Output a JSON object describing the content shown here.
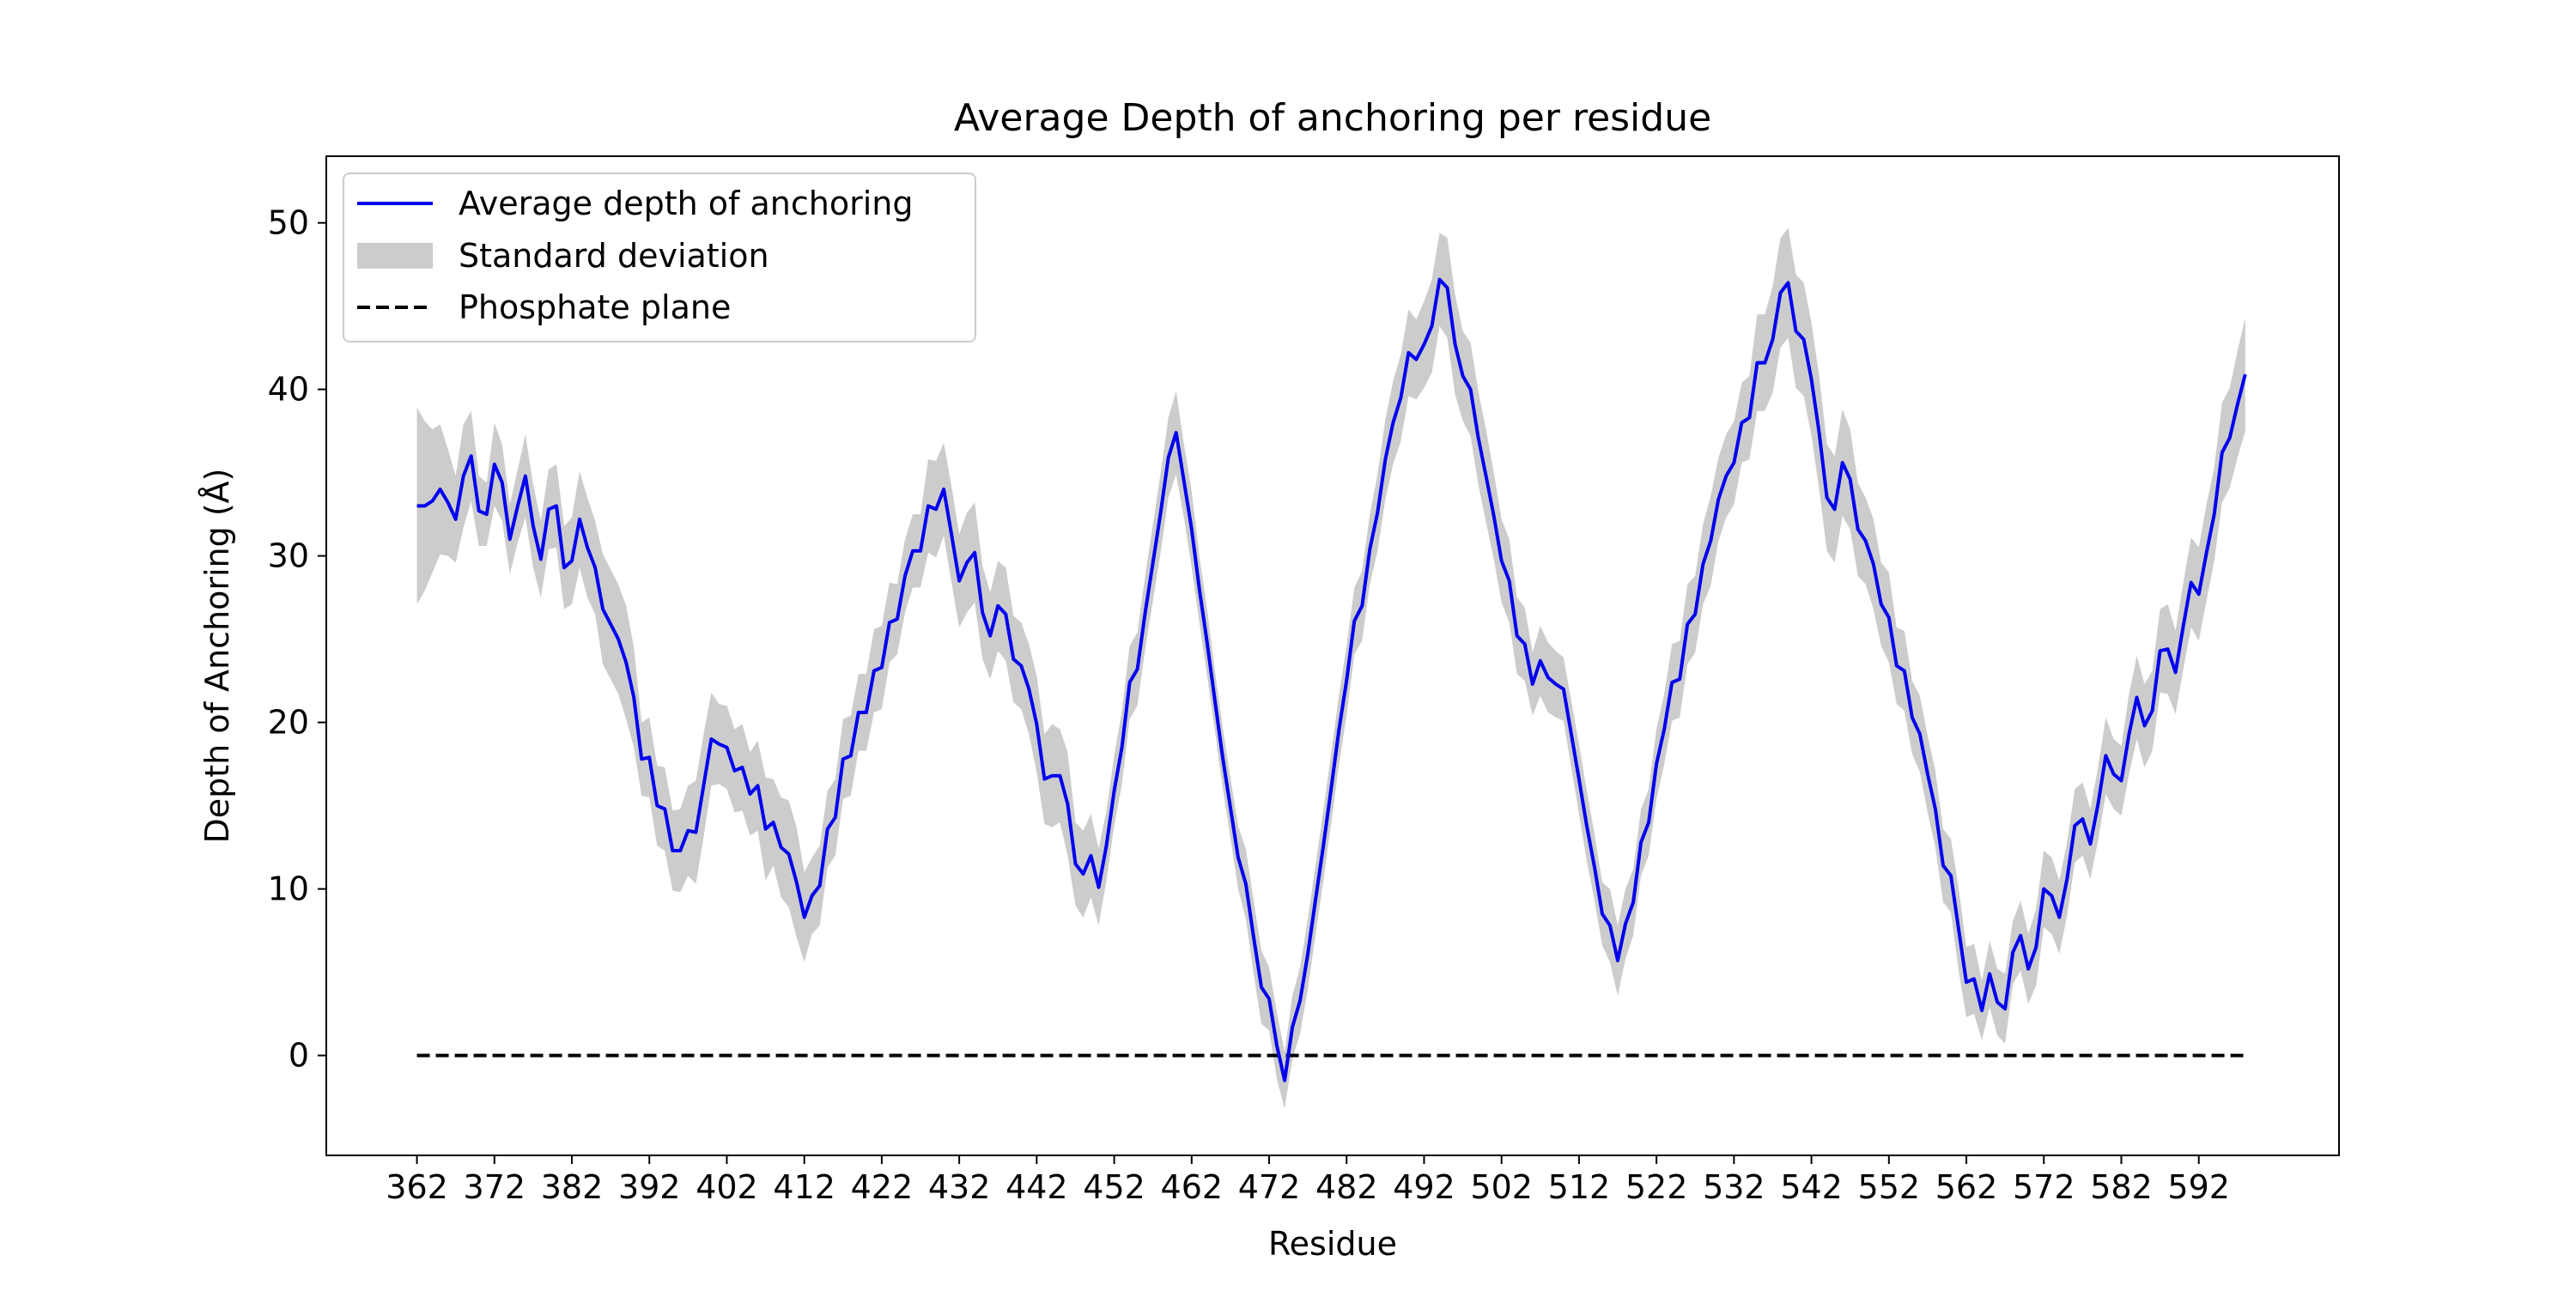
{
  "chart_data": {
    "type": "line",
    "title": "Average Depth of anchoring per residue",
    "xlabel": "Residue",
    "ylabel": "Depth of Anchoring (Å)",
    "xlim": [
      350.3,
      610.1
    ],
    "ylim": [
      -6,
      54
    ],
    "x_ticks": [
      362,
      372,
      382,
      392,
      402,
      412,
      422,
      432,
      442,
      452,
      462,
      472,
      482,
      492,
      502,
      512,
      522,
      532,
      542,
      552,
      562,
      572,
      582,
      592
    ],
    "y_ticks": [
      0,
      10,
      20,
      30,
      40,
      50
    ],
    "grid": false,
    "legend_position": "top-left",
    "legend": [
      {
        "label": "Average depth of anchoring",
        "style": "line",
        "color": "#0000ee"
      },
      {
        "label": "Standard deviation",
        "style": "band",
        "color": "#cccccc"
      },
      {
        "label": "Phosphate plane",
        "style": "dashed",
        "color": "#000000"
      }
    ],
    "x_start": 362,
    "x_step": 1,
    "series": [
      {
        "name": "Average depth of anchoring",
        "values": [
          33.0,
          33.0,
          33.3,
          34.0,
          33.2,
          32.2,
          34.8,
          36.0,
          32.7,
          32.5,
          35.5,
          34.4,
          31.0,
          33.0,
          34.8,
          31.8,
          29.8,
          32.8,
          33.0,
          29.3,
          29.7,
          32.2,
          30.5,
          29.3,
          26.8,
          25.9,
          25.0,
          23.6,
          21.5,
          17.8,
          17.9,
          15.0,
          14.8,
          12.3,
          12.3,
          13.5,
          13.4,
          16.2,
          19.0,
          18.7,
          18.5,
          17.1,
          17.3,
          15.7,
          16.2,
          13.6,
          14.0,
          12.5,
          12.1,
          10.4,
          8.3,
          9.6,
          10.2,
          13.6,
          14.3,
          17.8,
          18.0,
          20.6,
          20.6,
          23.1,
          23.3,
          26.0,
          26.2,
          28.8,
          30.3,
          30.3,
          33.0,
          32.8,
          34.0,
          31.3,
          28.5,
          29.6,
          30.2,
          26.6,
          25.2,
          27.0,
          26.5,
          23.8,
          23.4,
          22.0,
          19.9,
          16.6,
          16.8,
          16.8,
          15.1,
          11.5,
          10.9,
          12.0,
          10.1,
          12.6,
          15.9,
          18.5,
          22.4,
          23.2,
          26.6,
          29.6,
          32.6,
          35.9,
          37.4,
          34.5,
          31.6,
          28.0,
          24.8,
          21.3,
          17.9,
          14.9,
          11.9,
          10.3,
          7.1,
          4.1,
          3.4,
          0.6,
          -1.5,
          1.7,
          3.3,
          6.1,
          9.4,
          12.6,
          16.0,
          19.5,
          22.5,
          26.1,
          27.0,
          30.4,
          32.6,
          35.8,
          38.0,
          39.5,
          42.2,
          41.8,
          42.7,
          43.8,
          46.6,
          46.1,
          42.7,
          40.8,
          40.0,
          37.1,
          34.8,
          32.4,
          29.7,
          28.5,
          25.2,
          24.7,
          22.3,
          23.7,
          22.7,
          22.3,
          22.0,
          19.3,
          16.6,
          13.8,
          11.3,
          8.5,
          7.8,
          5.7,
          7.9,
          9.2,
          12.8,
          14.0,
          17.5,
          19.6,
          22.4,
          22.6,
          25.9,
          26.5,
          29.5,
          30.9,
          33.4,
          34.8,
          35.6,
          38.0,
          38.3,
          41.6,
          41.6,
          43.0,
          45.8,
          46.4,
          43.5,
          43.0,
          40.6,
          37.4,
          33.5,
          32.8,
          35.6,
          34.6,
          31.6,
          30.9,
          29.5,
          27.1,
          26.3,
          23.4,
          23.1,
          20.3,
          19.3,
          16.9,
          14.8,
          11.4,
          10.8,
          7.6,
          4.4,
          4.6,
          2.7,
          4.9,
          3.2,
          2.8,
          6.2,
          7.2,
          5.2,
          6.5,
          10.0,
          9.6,
          8.3,
          10.6,
          13.8,
          14.2,
          12.7,
          15.1,
          18.0,
          16.9,
          16.5,
          19.3,
          21.5,
          19.8,
          20.7,
          24.3,
          24.4,
          23.0,
          25.8,
          28.4,
          27.7,
          30.2,
          32.5,
          36.2,
          37.1,
          39.1,
          40.9
        ]
      }
    ],
    "std_band": {
      "name": "Standard deviation",
      "lower": [
        27.1,
        27.9,
        29.0,
        30.1,
        30.0,
        29.6,
        31.7,
        33.3,
        30.6,
        30.6,
        33.0,
        32.1,
        28.9,
        30.8,
        32.3,
        29.3,
        27.5,
        30.4,
        30.5,
        26.8,
        27.1,
        29.3,
        27.5,
        26.5,
        23.5,
        22.6,
        21.7,
        20.2,
        18.5,
        15.6,
        15.5,
        12.6,
        12.3,
        9.9,
        9.8,
        10.8,
        10.3,
        13.1,
        16.2,
        16.3,
        16.0,
        14.6,
        14.7,
        13.2,
        13.5,
        10.5,
        11.4,
        9.5,
        8.9,
        7.1,
        5.6,
        7.3,
        7.8,
        11.3,
        12.0,
        15.4,
        15.6,
        18.3,
        18.3,
        20.6,
        20.8,
        23.6,
        24.1,
        26.6,
        28.1,
        28.1,
        30.2,
        29.9,
        31.2,
        28.4,
        25.7,
        26.6,
        27.2,
        23.8,
        22.6,
        24.3,
        23.7,
        21.2,
        20.8,
        19.3,
        17.0,
        13.9,
        13.7,
        14.0,
        12.0,
        9.0,
        8.3,
        9.5,
        7.8,
        10.5,
        13.8,
        16.3,
        20.2,
        21.0,
        24.4,
        27.3,
        30.2,
        33.5,
        34.9,
        32.3,
        29.3,
        26.0,
        22.8,
        19.5,
        16.1,
        13.1,
        10.0,
        8.2,
        4.9,
        1.9,
        1.5,
        -1.4,
        -3.2,
        -0.2,
        1.3,
        4.0,
        7.3,
        10.5,
        13.9,
        17.4,
        20.4,
        24.1,
        24.9,
        28.3,
        30.3,
        33.4,
        35.5,
        36.9,
        39.6,
        39.4,
        40.1,
        41.0,
        43.8,
        43.1,
        39.7,
        38.1,
        37.2,
        34.3,
        32.0,
        29.8,
        27.2,
        26.0,
        22.9,
        22.5,
        20.4,
        21.6,
        20.6,
        20.3,
        20.1,
        17.3,
        14.5,
        11.7,
        9.3,
        6.6,
        5.6,
        3.6,
        5.8,
        7.2,
        10.8,
        12.0,
        15.4,
        17.5,
        20.1,
        20.3,
        23.5,
        24.2,
        27.1,
        28.2,
        30.9,
        32.3,
        33.1,
        35.6,
        35.8,
        38.7,
        38.7,
        39.8,
        42.5,
        43.1,
        40.1,
        39.6,
        37.2,
        34.0,
        30.3,
        29.6,
        32.4,
        31.6,
        28.8,
        28.3,
        26.8,
        24.6,
        23.6,
        21.1,
        20.7,
        18.1,
        17.0,
        14.6,
        12.5,
        9.2,
        8.6,
        5.1,
        2.3,
        2.5,
        0.9,
        2.9,
        1.2,
        0.7,
        4.3,
        5.1,
        3.1,
        4.2,
        7.7,
        7.3,
        6.1,
        8.4,
        11.6,
        12.0,
        10.6,
        12.9,
        15.7,
        14.8,
        14.4,
        16.9,
        19.0,
        17.3,
        18.3,
        21.8,
        21.7,
        20.5,
        23.2,
        25.7,
        24.9,
        27.3,
        29.7,
        33.2,
        34.1,
        35.9,
        37.5
      ],
      "upper": [
        38.9,
        38.1,
        37.6,
        37.9,
        36.4,
        34.8,
        37.9,
        38.7,
        34.8,
        34.4,
        38.0,
        36.7,
        33.1,
        35.2,
        37.3,
        34.3,
        32.1,
        35.2,
        35.5,
        31.8,
        32.3,
        35.1,
        33.5,
        32.1,
        30.1,
        29.2,
        28.3,
        27.0,
        24.5,
        20.0,
        20.3,
        17.4,
        17.3,
        14.7,
        14.8,
        16.2,
        16.5,
        19.3,
        21.8,
        21.1,
        21.0,
        19.6,
        19.9,
        18.2,
        18.9,
        16.7,
        16.6,
        15.5,
        15.3,
        13.7,
        11.0,
        11.9,
        12.6,
        15.9,
        16.6,
        20.2,
        20.4,
        22.9,
        22.9,
        25.6,
        25.8,
        28.4,
        28.3,
        31.0,
        32.5,
        32.5,
        35.8,
        35.7,
        36.8,
        34.2,
        31.3,
        32.6,
        33.2,
        29.4,
        27.8,
        29.7,
        29.3,
        26.4,
        26.0,
        24.7,
        22.8,
        19.3,
        19.9,
        19.6,
        18.2,
        14.0,
        13.5,
        14.5,
        12.4,
        14.7,
        18.0,
        20.7,
        24.6,
        25.4,
        28.8,
        31.9,
        35.0,
        38.3,
        39.9,
        36.7,
        33.9,
        30.0,
        26.8,
        23.1,
        19.7,
        16.7,
        13.8,
        12.4,
        9.3,
        6.3,
        5.3,
        2.6,
        0.2,
        3.6,
        5.3,
        8.2,
        11.5,
        14.7,
        18.1,
        21.6,
        24.6,
        28.1,
        29.1,
        32.5,
        34.9,
        38.2,
        40.5,
        42.1,
        44.8,
        44.2,
        45.3,
        46.6,
        49.4,
        49.1,
        45.7,
        43.5,
        42.8,
        39.9,
        37.6,
        35.0,
        32.2,
        31.0,
        27.5,
        26.9,
        24.2,
        25.8,
        24.8,
        24.3,
        23.9,
        21.3,
        18.7,
        15.9,
        13.3,
        10.4,
        10.0,
        7.8,
        10.0,
        11.2,
        14.8,
        16.0,
        19.6,
        21.7,
        24.7,
        24.9,
        28.3,
        28.8,
        31.9,
        33.6,
        35.9,
        37.3,
        38.1,
        40.4,
        40.8,
        44.5,
        44.5,
        46.2,
        49.1,
        49.7,
        46.9,
        46.4,
        44.0,
        40.8,
        36.7,
        36.0,
        38.8,
        37.6,
        34.4,
        33.5,
        32.2,
        29.6,
        29.0,
        25.7,
        25.5,
        22.5,
        21.6,
        19.2,
        17.1,
        13.6,
        13.0,
        10.1,
        6.5,
        6.7,
        4.5,
        6.9,
        5.2,
        4.9,
        8.1,
        9.3,
        7.3,
        8.8,
        12.3,
        11.9,
        10.5,
        12.8,
        16.0,
        16.4,
        14.8,
        17.3,
        20.3,
        19.0,
        18.6,
        21.7,
        24.0,
        22.3,
        23.1,
        26.8,
        27.1,
        25.5,
        28.4,
        31.1,
        30.5,
        33.1,
        35.3,
        39.2,
        40.1,
        42.3,
        44.3
      ]
    },
    "reference_line": {
      "name": "Phosphate plane",
      "y": 0,
      "x_range": [
        362,
        598
      ]
    }
  }
}
